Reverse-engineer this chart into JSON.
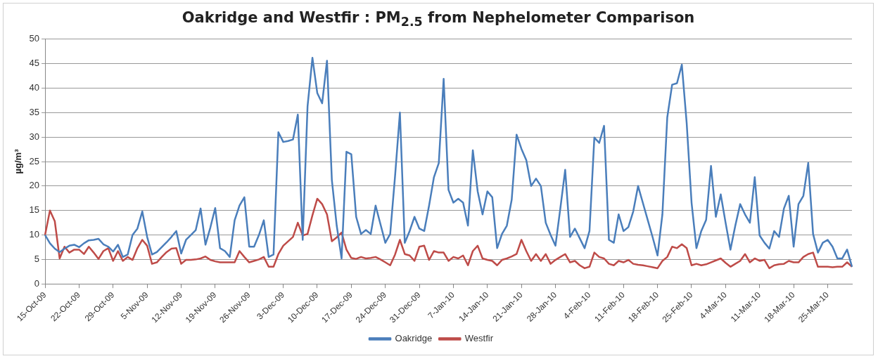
{
  "chart_data": {
    "type": "line",
    "title": "Oakridge and Westfir : PM$_{2.5}$ from Nephelometer Comparison",
    "ylabel": "µg/m³",
    "categories": [
      "15-Oct-09",
      null,
      null,
      null,
      null,
      null,
      null,
      "22-Oct-09",
      null,
      null,
      null,
      null,
      null,
      null,
      "29-Oct-09",
      null,
      null,
      null,
      null,
      null,
      null,
      "5-Nov-09",
      null,
      null,
      null,
      null,
      null,
      null,
      "12-Nov-09",
      null,
      null,
      null,
      null,
      null,
      null,
      "19-Nov-09",
      null,
      null,
      null,
      null,
      null,
      null,
      "26-Nov-09",
      null,
      null,
      null,
      null,
      null,
      null,
      "3-Dec-09",
      null,
      null,
      null,
      null,
      null,
      null,
      "10-Dec-09",
      null,
      null,
      null,
      null,
      null,
      null,
      "17-Dec-09",
      null,
      null,
      null,
      null,
      null,
      null,
      "24-Dec-09",
      null,
      null,
      null,
      null,
      null,
      null,
      "31-Dec-09",
      null,
      null,
      null,
      null,
      null,
      null,
      "7-Jan-10",
      null,
      null,
      null,
      null,
      null,
      null,
      "14-Jan-10",
      null,
      null,
      null,
      null,
      null,
      null,
      "21-Jan-10",
      null,
      null,
      null,
      null,
      null,
      null,
      "28-Jan-10",
      null,
      null,
      null,
      null,
      null,
      null,
      "4-Feb-10",
      null,
      null,
      null,
      null,
      null,
      null,
      "11-Feb-10",
      null,
      null,
      null,
      null,
      null,
      null,
      "18-Feb-10",
      null,
      null,
      null,
      null,
      null,
      null,
      "25-Feb-10",
      null,
      null,
      null,
      null,
      null,
      null,
      "4-Mar-10",
      null,
      null,
      null,
      null,
      null,
      null,
      "11-Mar-10",
      null,
      null,
      null,
      null,
      null,
      null,
      "18-Mar-10",
      null,
      null,
      null,
      null,
      null,
      null,
      "25-Mar-10",
      null,
      null,
      null,
      null,
      null
    ],
    "series": [
      {
        "name": "Oakridge",
        "color": "#4a7ebb",
        "values": [
          10,
          8.3,
          7.2,
          6.5,
          7.2,
          7.8,
          8,
          7.5,
          8.3,
          8.9,
          9,
          9.2,
          8.1,
          7.6,
          6.6,
          8,
          5.5,
          6,
          10,
          11.3,
          14.8,
          9.6,
          6,
          6.5,
          7.5,
          8.5,
          9.6,
          10.8,
          6.2,
          9,
          10,
          11,
          15.4,
          8,
          11.5,
          15.5,
          7.3,
          6.7,
          5.5,
          13,
          16,
          17.7,
          7.6,
          7.6,
          10,
          13,
          5.5,
          6,
          31,
          29,
          29.2,
          29.5,
          34.6,
          9,
          36.3,
          46.2,
          39,
          36.9,
          45.6,
          21.2,
          11.9,
          5.2,
          27,
          26.5,
          13.7,
          10.2,
          11,
          10.2,
          16,
          12.2,
          8.4,
          10.2,
          22,
          35,
          8.4,
          10.8,
          13.7,
          11.3,
          10.8,
          16,
          21.8,
          24.7,
          41.9,
          19.2,
          16.6,
          17.4,
          16.6,
          11.9,
          27.3,
          18.9,
          14.2,
          18.9,
          17.7,
          7.3,
          10.2,
          11.9,
          17.2,
          30.5,
          27.6,
          25.3,
          20,
          21.5,
          20,
          12.5,
          10,
          7.8,
          15.4,
          23.3,
          9.6,
          11.3,
          9.3,
          7.3,
          10.8,
          29.9,
          28.8,
          32.3,
          9,
          8.4,
          14.2,
          10.8,
          11.6,
          14.8,
          20,
          16.5,
          13,
          9.5,
          5.8,
          14.2,
          34,
          40.7,
          41,
          44.8,
          32.8,
          16.6,
          7.3,
          10.8,
          13.1,
          24.1,
          13.7,
          18.3,
          12.5,
          7,
          11.9,
          16.3,
          14.2,
          12.5,
          21.8,
          9.9,
          8.4,
          7.2,
          10.8,
          9.6,
          15.4,
          18,
          7.6,
          16.3,
          18,
          24.7,
          10.2,
          6.4,
          8.4,
          9,
          7.6,
          5.2,
          5.2,
          7,
          3.5
        ]
      },
      {
        "name": "Westfir",
        "color": "#be4b48",
        "values": [
          10,
          15,
          12.8,
          5.2,
          7.6,
          6.4,
          7,
          7,
          6.1,
          7.6,
          6.4,
          5.1,
          6.7,
          7.3,
          4.7,
          6.7,
          4.7,
          5.5,
          4.9,
          7.3,
          9,
          7.8,
          4.1,
          4.4,
          5.5,
          6.5,
          7.2,
          7.3,
          4.1,
          4.9,
          4.9,
          5,
          5.2,
          5.6,
          4.9,
          4.6,
          4.4,
          4.4,
          4.4,
          4.4,
          6.7,
          5.5,
          4.4,
          4.7,
          5,
          5.5,
          3.5,
          3.5,
          6.1,
          7.8,
          8.7,
          9.6,
          12.5,
          9.9,
          10.2,
          14,
          17.4,
          16.3,
          14.2,
          8.7,
          9.5,
          10.5,
          7,
          5.3,
          5.1,
          5.5,
          5.2,
          5.3,
          5.5,
          5,
          4.4,
          3.8,
          6,
          9,
          6.1,
          5.8,
          4.7,
          7.6,
          7.8,
          4.9,
          6.7,
          6.4,
          6.4,
          4.7,
          5.5,
          5.2,
          5.8,
          3.8,
          6.7,
          7.8,
          5.2,
          4.9,
          4.7,
          3.8,
          4.9,
          5.2,
          5.6,
          6.1,
          9,
          6.7,
          4.7,
          6.1,
          4.7,
          6.1,
          4.1,
          4.9,
          5.5,
          6.1,
          4.4,
          4.7,
          3.8,
          3.2,
          3.5,
          6.4,
          5.5,
          5.2,
          4.1,
          3.8,
          4.7,
          4.4,
          4.9,
          4.1,
          3.9,
          3.8,
          3.6,
          3.4,
          3.2,
          4.7,
          5.5,
          7.6,
          7.3,
          8.1,
          7.3,
          3.8,
          4.1,
          3.8,
          4,
          4.4,
          4.8,
          5.2,
          4.3,
          3.5,
          4.1,
          4.7,
          6.1,
          4.4,
          5.2,
          4.7,
          4.9,
          3.2,
          3.8,
          4,
          4.1,
          4.7,
          4.4,
          4.4,
          5.5,
          6.1,
          6.4,
          3.5,
          3.5,
          3.5,
          3.4,
          3.5,
          3.5,
          4.4,
          3.5
        ]
      }
    ],
    "ylim": [
      0,
      50
    ],
    "yticks": [
      0,
      5,
      10,
      15,
      20,
      25,
      30,
      35,
      40,
      45,
      50
    ],
    "grid": "y",
    "legend": "bottom",
    "marker": "none",
    "line_style": "solid"
  }
}
